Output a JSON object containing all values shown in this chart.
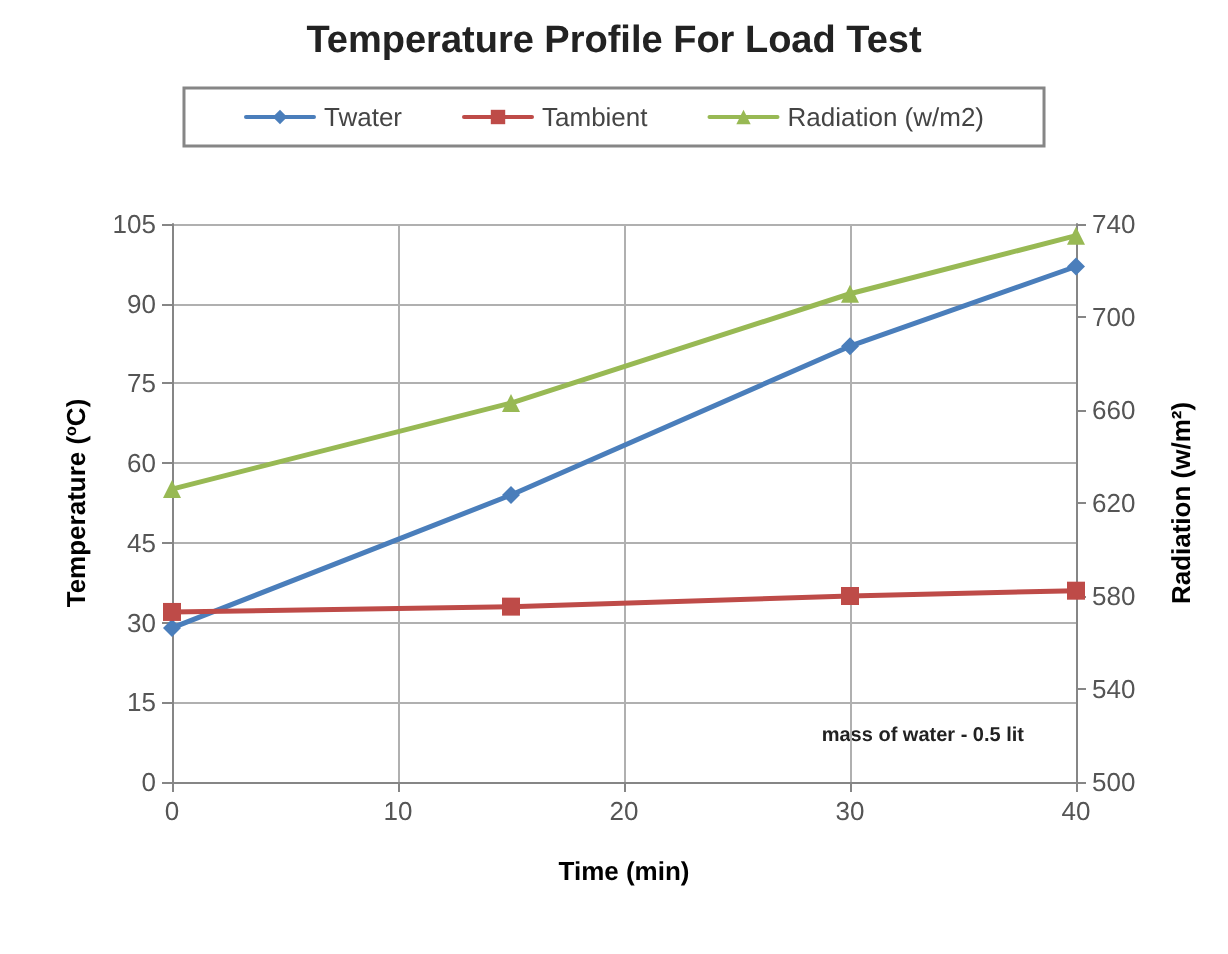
{
  "chart_data": {
    "type": "line",
    "title": "Temperature Profile For Load Test",
    "xlabel": "Time (min)",
    "ylabel": "Temperature ($^{o}$C)",
    "y2label": "Radiation (w/m²)",
    "x": [
      0,
      15,
      30,
      40
    ],
    "series": [
      {
        "name": "Twater",
        "color": "#4a7ebb",
        "marker": "diamond",
        "values": [
          29,
          54,
          82,
          97
        ]
      },
      {
        "name": "Tambient",
        "color": "#be4b48",
        "marker": "square",
        "values": [
          32,
          33,
          35,
          36
        ]
      },
      {
        "name": "Radiation (w/m2)",
        "color": "#98b954",
        "marker": "triangle",
        "axis": "y2",
        "values": [
          626,
          663,
          710,
          735
        ]
      }
    ],
    "xlim": [
      0,
      40
    ],
    "xticks": [
      0,
      10,
      20,
      30,
      40
    ],
    "ylim": [
      0,
      105
    ],
    "yticks": [
      0,
      15,
      30,
      45,
      60,
      75,
      90,
      105
    ],
    "y2lim": [
      500,
      740
    ],
    "y2ticks": [
      500,
      540,
      580,
      620,
      660,
      700,
      740
    ],
    "grid": true,
    "legend": "top",
    "annotations": [
      "mass of water - 0.5 lit"
    ]
  }
}
